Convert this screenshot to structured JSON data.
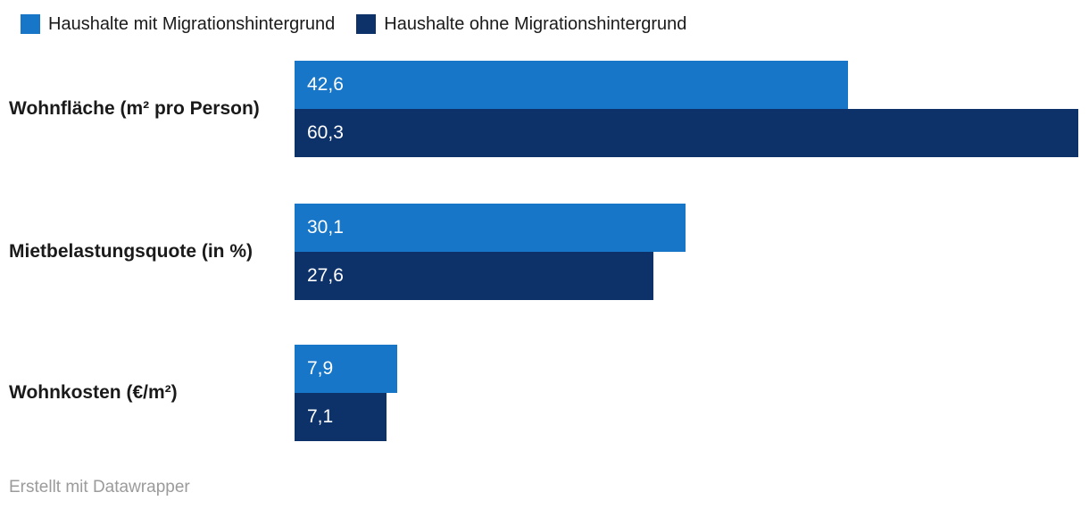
{
  "chart_data": {
    "type": "bar",
    "orientation": "horizontal",
    "categories": [
      "Wohnfläche (m² pro Person)",
      "Mietbelastungsquote (in %)",
      "Wohnkosten (€/m²)"
    ],
    "series": [
      {
        "name": "Haushalte mit Migrationshintergrund",
        "color": "#1776c8",
        "values": [
          42.6,
          30.1,
          7.9
        ],
        "value_labels": [
          "42,6",
          "30,1",
          "7,9"
        ]
      },
      {
        "name": "Haushalte ohne Migrationshintergrund",
        "color": "#0d326a",
        "values": [
          60.3,
          27.6,
          7.1
        ],
        "value_labels": [
          "60,3",
          "27,6",
          "7,1"
        ]
      }
    ],
    "xlim": [
      0,
      60.3
    ],
    "grid": false,
    "legend_position": "top",
    "value_label_position": "inside-start",
    "value_label_color": "#ffffff"
  },
  "footer": {
    "credit": "Erstellt mit Datawrapper"
  }
}
